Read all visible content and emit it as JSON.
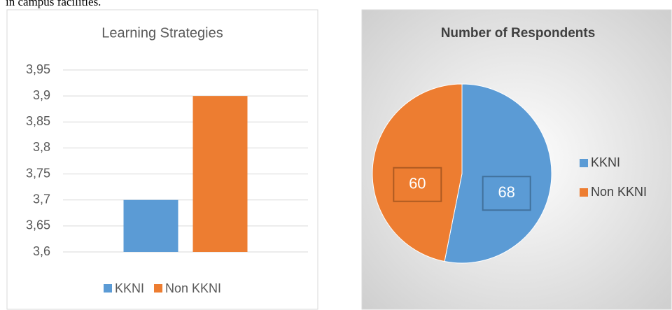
{
  "header_text": "in campus facilities.",
  "chart_data": [
    {
      "type": "bar",
      "title": "Learning Strategies",
      "categories": [
        null
      ],
      "series": [
        {
          "name": "KKNI",
          "color": "#5b9bd5",
          "values": [
            3.7
          ]
        },
        {
          "name": "Non KKNI",
          "color": "#ed7d31",
          "values": [
            3.9
          ]
        }
      ],
      "ylim": [
        3.6,
        3.95
      ],
      "yticks": [
        {
          "value": 3.6,
          "label": "3,6"
        },
        {
          "value": 3.65,
          "label": "3,65"
        },
        {
          "value": 3.7,
          "label": "3,7"
        },
        {
          "value": 3.75,
          "label": "3,75"
        },
        {
          "value": 3.8,
          "label": "3,8"
        },
        {
          "value": 3.85,
          "label": "3,85"
        },
        {
          "value": 3.9,
          "label": "3,9"
        },
        {
          "value": 3.95,
          "label": "3,95"
        }
      ],
      "grid": true,
      "legend": "bottom"
    },
    {
      "type": "pie",
      "title": "Number of Respondents",
      "categories": [
        "KKNI",
        "Non KKNI"
      ],
      "values": [
        68,
        60
      ],
      "colors": [
        "#5b9bd5",
        "#ed7d31"
      ],
      "legend": "right"
    }
  ]
}
